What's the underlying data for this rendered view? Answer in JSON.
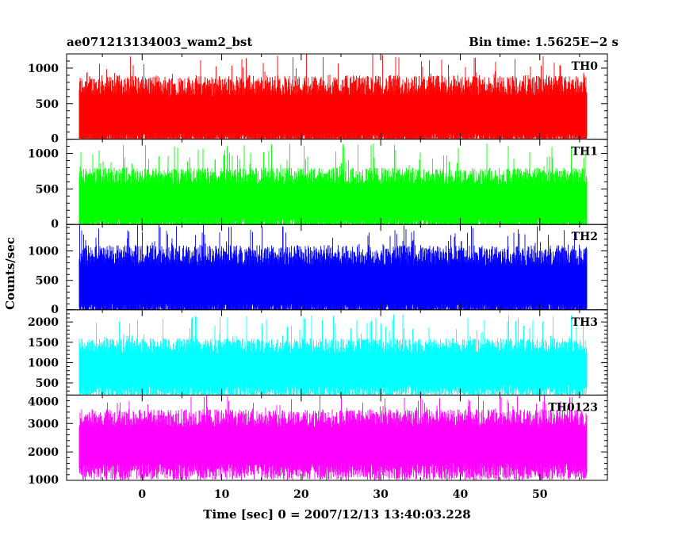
{
  "header": {
    "left_title": "ae071213134003_wam2_bst",
    "right_title": "Bin time: 1.5625E−2 s"
  },
  "chart_data": {
    "type": "line",
    "xlabel": "Time [sec] 0 = 2007/12/13 13:40:03.228",
    "ylabel": "Counts/sec",
    "xlim": [
      -9.5,
      58.5
    ],
    "data_x_range": [
      -8,
      56
    ],
    "x_ticks": [
      0,
      10,
      20,
      30,
      40,
      50
    ],
    "x_tick_labels": [
      "0",
      "10",
      "20",
      "30",
      "40",
      "50"
    ],
    "series": [
      {
        "name": "TH0",
        "color": "#ff0000",
        "ylim": [
          0,
          1200
        ],
        "y_ticks": [
          0,
          500,
          1000
        ],
        "y_tick_labels": [
          "0",
          "500",
          "1000"
        ],
        "typical_range": [
          80,
          900
        ],
        "mean": 480,
        "peak": 1200
      },
      {
        "name": "TH1",
        "color": "#00ff00",
        "ylim": [
          0,
          1200
        ],
        "y_ticks": [
          0,
          500,
          1000
        ],
        "y_tick_labels": [
          "0",
          "500",
          "1000"
        ],
        "typical_range": [
          80,
          800
        ],
        "mean": 450,
        "peak": 1150
      },
      {
        "name": "TH2",
        "color": "#0000ff",
        "ylim": [
          0,
          1450
        ],
        "y_ticks": [
          0,
          500,
          1000
        ],
        "y_tick_labels": [
          "0",
          "500",
          "1000"
        ],
        "typical_range": [
          100,
          1100
        ],
        "mean": 600,
        "peak": 1450
      },
      {
        "name": "TH3",
        "color": "#00ffff",
        "ylim": [
          200,
          2300
        ],
        "y_ticks": [
          500,
          1000,
          1500,
          2000
        ],
        "y_tick_labels": [
          "500",
          "1000",
          "1500",
          "2000"
        ],
        "typical_range": [
          450,
          1600
        ],
        "mean": 1050,
        "peak": 2200
      },
      {
        "name": "TH0123",
        "color": "#ff00ff",
        "ylim": [
          1000,
          4000
        ],
        "y_ticks": [
          1000,
          2000,
          3000,
          4000
        ],
        "y_tick_labels": [
          "1000",
          "2000",
          "3000",
          "4000"
        ],
        "typical_range": [
          1600,
          3500
        ],
        "mean": 2600,
        "peak": 4000
      }
    ]
  }
}
